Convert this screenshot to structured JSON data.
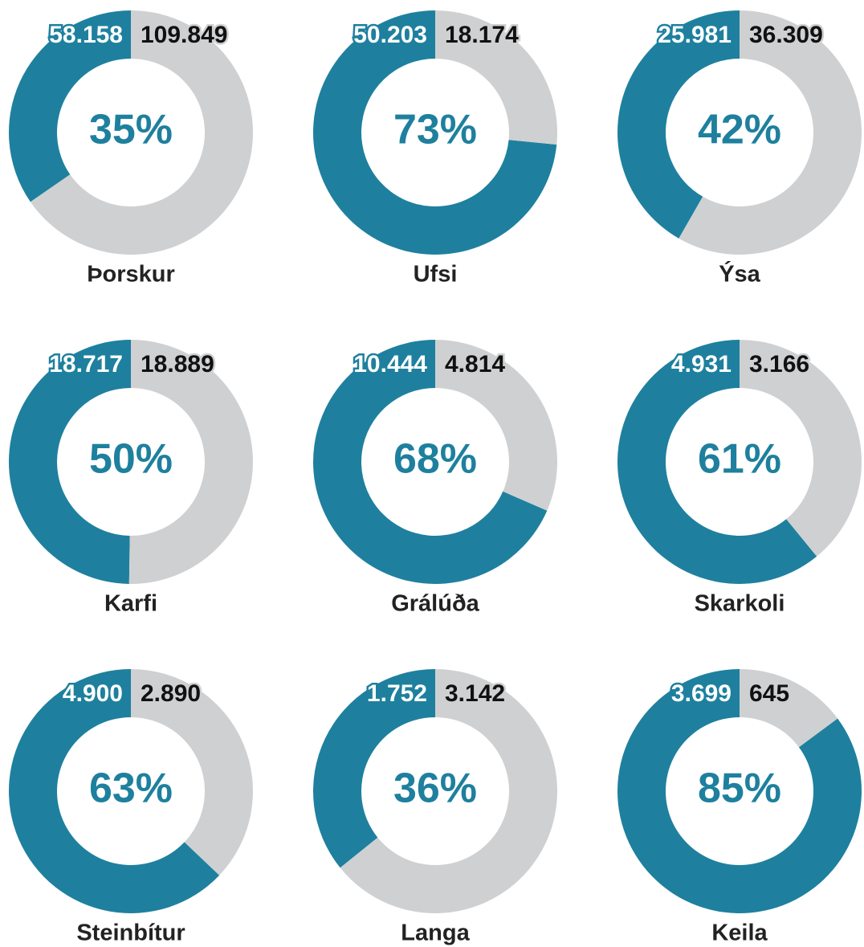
{
  "chart_data": [
    {
      "type": "donut",
      "title": "Þorskur",
      "values": [
        58158,
        109849
      ],
      "value_labels": [
        "58.158",
        "109.849"
      ],
      "center_label": "35%",
      "colors": [
        "#1e809e",
        "#cfd0d2"
      ]
    },
    {
      "type": "donut",
      "title": "Ufsi",
      "values": [
        50203,
        18174
      ],
      "value_labels": [
        "50.203",
        "18.174"
      ],
      "center_label": "73%",
      "colors": [
        "#1e809e",
        "#cfd0d2"
      ]
    },
    {
      "type": "donut",
      "title": "Ýsa",
      "values": [
        25981,
        36309
      ],
      "value_labels": [
        "25.981",
        "36.309"
      ],
      "center_label": "42%",
      "colors": [
        "#1e809e",
        "#cfd0d2"
      ]
    },
    {
      "type": "donut",
      "title": "Karfi",
      "values": [
        18717,
        18889
      ],
      "value_labels": [
        "18.717",
        "18.889"
      ],
      "center_label": "50%",
      "colors": [
        "#1e809e",
        "#cfd0d2"
      ]
    },
    {
      "type": "donut",
      "title": "Grálúða",
      "values": [
        10444,
        4814
      ],
      "value_labels": [
        "10.444",
        "4.814"
      ],
      "center_label": "68%",
      "colors": [
        "#1e809e",
        "#cfd0d2"
      ]
    },
    {
      "type": "donut",
      "title": "Skarkoli",
      "values": [
        4931,
        3166
      ],
      "value_labels": [
        "4.931",
        "3.166"
      ],
      "center_label": "61%",
      "colors": [
        "#1e809e",
        "#cfd0d2"
      ]
    },
    {
      "type": "donut",
      "title": "Steinbítur",
      "values": [
        4900,
        2890
      ],
      "value_labels": [
        "4.900",
        "2.890"
      ],
      "center_label": "63%",
      "colors": [
        "#1e809e",
        "#cfd0d2"
      ]
    },
    {
      "type": "donut",
      "title": "Langa",
      "values": [
        1752,
        3142
      ],
      "value_labels": [
        "1.752",
        "3.142"
      ],
      "center_label": "36%",
      "colors": [
        "#1e809e",
        "#cfd0d2"
      ]
    },
    {
      "type": "donut",
      "title": "Keila",
      "values": [
        3699,
        645
      ],
      "value_labels": [
        "3.699",
        "645"
      ],
      "center_label": "85%",
      "colors": [
        "#1e809e",
        "#cfd0d2"
      ]
    }
  ]
}
